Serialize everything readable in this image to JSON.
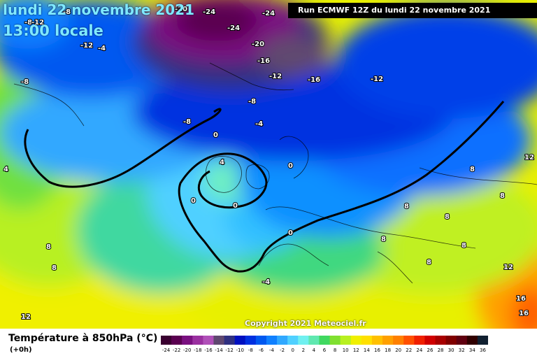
{
  "header": {
    "date": "lundi 22 novembre 2021",
    "time": "13:00 locale",
    "run": "Run ECMWF 12Z du lundi 22 novembre 2021"
  },
  "copyright": "Copyright 2021 Meteociel.fr",
  "legend": {
    "title": "Température à 850hPa (°C)",
    "subtitle": "(+0h)",
    "ticks": [
      "-24",
      "-22",
      "-20",
      "-18",
      "-16",
      "-14",
      "-12",
      "-10",
      "-8",
      "-6",
      "-4",
      "-2",
      "0",
      "2",
      "4",
      "6",
      "8",
      "10",
      "12",
      "14",
      "16",
      "18",
      "20",
      "22",
      "24",
      "26",
      "28",
      "30",
      "32",
      "34",
      "36"
    ],
    "colors": [
      "#3a0030",
      "#5a0050",
      "#7a1080",
      "#9a30a0",
      "#b050b8",
      "#604870",
      "#303080",
      "#0010c0",
      "#0030e0",
      "#0058f0",
      "#1080ff",
      "#30a8ff",
      "#50d0ff",
      "#70f0f0",
      "#60e8b0",
      "#40d860",
      "#80e030",
      "#b8f020",
      "#f0f000",
      "#ffe000",
      "#ffc000",
      "#ffa000",
      "#ff8000",
      "#ff5000",
      "#f02000",
      "#d00000",
      "#a80000",
      "#800000",
      "#600010",
      "#300000",
      "#102030"
    ]
  },
  "map_labels": [
    {
      "text": "-24"
    },
    {
      "text": "-24"
    },
    {
      "text": "-24"
    },
    {
      "text": "-20"
    },
    {
      "text": "-20"
    },
    {
      "text": "-16"
    },
    {
      "text": "-16"
    },
    {
      "text": "-12"
    },
    {
      "text": "-12"
    },
    {
      "text": "-12"
    },
    {
      "text": "-8"
    },
    {
      "text": "-8"
    },
    {
      "text": "-8"
    },
    {
      "text": "-4"
    },
    {
      "text": "-4"
    },
    {
      "text": "0"
    },
    {
      "text": "0"
    },
    {
      "text": "0"
    },
    {
      "text": "0"
    },
    {
      "text": "0"
    },
    {
      "text": "4"
    },
    {
      "text": "4"
    },
    {
      "text": "8"
    },
    {
      "text": "8"
    },
    {
      "text": "8"
    },
    {
      "text": "8"
    },
    {
      "text": "8"
    },
    {
      "text": "8"
    },
    {
      "text": "8"
    },
    {
      "text": "8"
    },
    {
      "text": "12"
    },
    {
      "text": "12"
    },
    {
      "text": "12"
    },
    {
      "text": "16"
    },
    {
      "text": "16"
    },
    {
      "text": "-12"
    },
    {
      "text": "-8"
    },
    {
      "text": "-4"
    },
    {
      "text": "8"
    },
    {
      "text": "-8"
    }
  ]
}
